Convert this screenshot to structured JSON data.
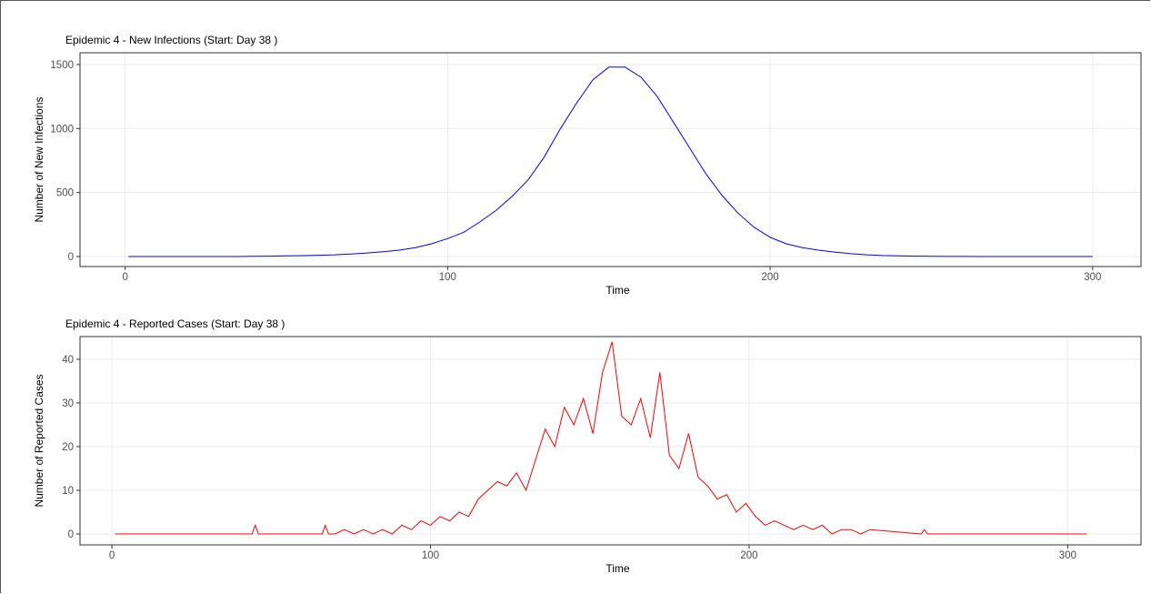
{
  "chart_data": [
    {
      "type": "line",
      "title": "Epidemic 4 - New Infections (Start: Day 38 )",
      "x_label": "Time",
      "y_label": "Number of New Infections",
      "color": "#0000ff",
      "x": [
        1,
        5,
        10,
        15,
        20,
        25,
        30,
        35,
        40,
        45,
        50,
        55,
        60,
        65,
        70,
        75,
        80,
        85,
        90,
        95,
        100,
        105,
        110,
        115,
        120,
        125,
        130,
        135,
        140,
        145,
        150,
        155,
        160,
        165,
        170,
        175,
        180,
        185,
        190,
        195,
        200,
        205,
        210,
        215,
        220,
        225,
        230,
        235,
        240,
        245,
        250,
        255,
        260,
        265,
        270,
        275,
        280,
        285,
        290,
        295,
        300
      ],
      "values": [
        0,
        0,
        0,
        0,
        0,
        0,
        0,
        0,
        2,
        3,
        5,
        7,
        10,
        14,
        20,
        28,
        38,
        50,
        70,
        100,
        140,
        190,
        270,
        360,
        470,
        600,
        780,
        1000,
        1200,
        1380,
        1480,
        1480,
        1400,
        1250,
        1050,
        850,
        650,
        480,
        340,
        230,
        150,
        100,
        70,
        50,
        35,
        22,
        14,
        8,
        5,
        3,
        2,
        1,
        1,
        0,
        0,
        0,
        0,
        0,
        0,
        0,
        0
      ],
      "xlim": [
        -14,
        315
      ],
      "ylim": [
        -78,
        1592
      ],
      "xticks": [
        0,
        100,
        200,
        300
      ],
      "yticks": [
        0,
        500,
        1000,
        1500
      ],
      "grid": true
    },
    {
      "type": "line",
      "title": "Epidemic 4 - Reported Cases (Start: Day 38 )",
      "x_label": "Time",
      "y_label": "Number of Reported Cases",
      "color": "#ff0000",
      "x": [
        1,
        44,
        45,
        46,
        66,
        67,
        68,
        70,
        73,
        76,
        79,
        82,
        85,
        88,
        91,
        94,
        97,
        100,
        103,
        106,
        109,
        112,
        115,
        118,
        121,
        124,
        127,
        130,
        133,
        136,
        139,
        142,
        145,
        148,
        151,
        154,
        157,
        160,
        163,
        166,
        169,
        172,
        175,
        178,
        181,
        184,
        187,
        190,
        193,
        196,
        199,
        202,
        205,
        208,
        211,
        214,
        217,
        220,
        223,
        226,
        229,
        232,
        235,
        238,
        254,
        255,
        256,
        306
      ],
      "values": [
        0,
        0,
        2,
        0,
        0,
        2,
        0,
        0,
        1,
        0,
        1,
        0,
        1,
        0,
        2,
        1,
        3,
        2,
        4,
        3,
        5,
        4,
        8,
        10,
        12,
        11,
        14,
        10,
        17,
        24,
        20,
        29,
        25,
        31,
        23,
        37,
        44,
        27,
        25,
        31,
        22,
        37,
        18,
        15,
        23,
        13,
        11,
        8,
        9,
        5,
        7,
        4,
        2,
        3,
        2,
        1,
        2,
        1,
        2,
        0,
        1,
        1,
        0,
        1,
        0,
        1,
        0,
        0
      ],
      "xlim": [
        -10,
        323
      ],
      "ylim": [
        -2.5,
        45.2
      ],
      "xticks": [
        0,
        100,
        200,
        300
      ],
      "yticks": [
        0,
        10,
        20,
        30,
        40
      ],
      "grid": true
    }
  ]
}
